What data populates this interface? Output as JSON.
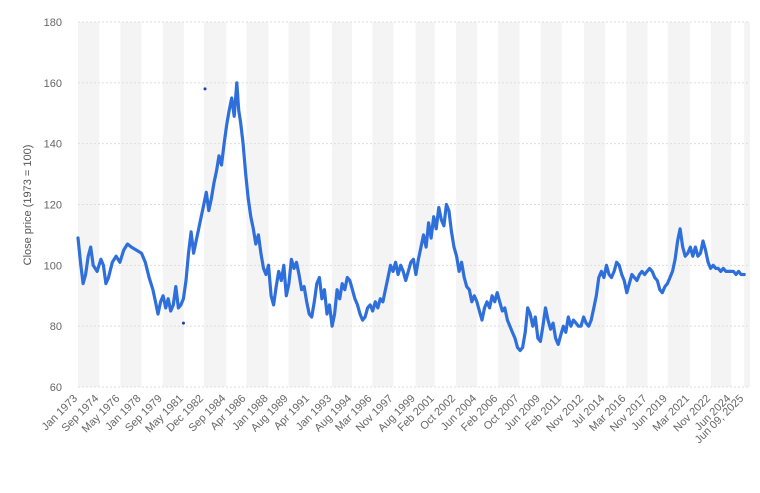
{
  "chart_data": {
    "type": "line",
    "ylabel": "Close price (1973 = 100)",
    "ylim": [
      60,
      180
    ],
    "yticks": [
      60,
      80,
      100,
      120,
      140,
      160,
      180
    ],
    "xlim": [
      1973.0,
      2025.9
    ],
    "xtick_labels": [
      {
        "label": "Jan 1973",
        "x": 1973.0
      },
      {
        "label": "Sep 1974",
        "x": 1974.67
      },
      {
        "label": "May 1976",
        "x": 1976.33
      },
      {
        "label": "Jan 1978",
        "x": 1978.0
      },
      {
        "label": "Sep 1979",
        "x": 1979.67
      },
      {
        "label": "May 1981",
        "x": 1981.33
      },
      {
        "label": "Dec 1982",
        "x": 1982.92
      },
      {
        "label": "Sep 1984",
        "x": 1984.67
      },
      {
        "label": "Apr 1986",
        "x": 1986.25
      },
      {
        "label": "Jan 1988",
        "x": 1988.0
      },
      {
        "label": "Aug 1989",
        "x": 1989.58
      },
      {
        "label": "Apr 1991",
        "x": 1991.25
      },
      {
        "label": "Jan 1993",
        "x": 1993.0
      },
      {
        "label": "Aug 1994",
        "x": 1994.58
      },
      {
        "label": "Mar 1996",
        "x": 1996.17
      },
      {
        "label": "Nov 1997",
        "x": 1997.83
      },
      {
        "label": "Aug 1999",
        "x": 1999.58
      },
      {
        "label": "Feb 2001",
        "x": 2001.08
      },
      {
        "label": "Oct 2002",
        "x": 2002.75
      },
      {
        "label": "Jun 2004",
        "x": 2004.42
      },
      {
        "label": "Feb 2006",
        "x": 2006.08
      },
      {
        "label": "Oct 2007",
        "x": 2007.75
      },
      {
        "label": "Jun 2009",
        "x": 2009.42
      },
      {
        "label": "Feb 2011",
        "x": 2011.08
      },
      {
        "label": "Nov 2012",
        "x": 2012.83
      },
      {
        "label": "Jul 2014",
        "x": 2014.5
      },
      {
        "label": "Mar 2016",
        "x": 2016.17
      },
      {
        "label": "Nov 2017",
        "x": 2017.83
      },
      {
        "label": "Jun 2019",
        "x": 2019.42
      },
      {
        "label": "Mar 2021",
        "x": 2021.17
      },
      {
        "label": "Nov 2022",
        "x": 2022.83
      },
      {
        "label": "Jun 2024",
        "x": 2024.42
      },
      {
        "label": "Jun 09, 2025",
        "x": 2025.44
      }
    ],
    "grid": true,
    "line_color": "#2f6fdc",
    "points": [
      [
        1973.0,
        109
      ],
      [
        1973.2,
        101
      ],
      [
        1973.4,
        94
      ],
      [
        1973.6,
        97
      ],
      [
        1973.8,
        103
      ],
      [
        1974.0,
        106
      ],
      [
        1974.2,
        100
      ],
      [
        1974.5,
        98
      ],
      [
        1974.8,
        102
      ],
      [
        1975.0,
        100
      ],
      [
        1975.2,
        94
      ],
      [
        1975.4,
        96
      ],
      [
        1975.7,
        101
      ],
      [
        1976.0,
        103
      ],
      [
        1976.3,
        101
      ],
      [
        1976.6,
        105
      ],
      [
        1976.9,
        107
      ],
      [
        1977.2,
        106
      ],
      [
        1977.6,
        105
      ],
      [
        1978.0,
        104
      ],
      [
        1978.3,
        101
      ],
      [
        1978.6,
        96
      ],
      [
        1978.9,
        92
      ],
      [
        1979.1,
        88
      ],
      [
        1979.3,
        84
      ],
      [
        1979.5,
        88
      ],
      [
        1979.7,
        90
      ],
      [
        1979.9,
        86
      ],
      [
        1980.1,
        89
      ],
      [
        1980.3,
        85
      ],
      [
        1980.5,
        87
      ],
      [
        1980.7,
        93
      ],
      [
        1980.9,
        86
      ],
      [
        1981.1,
        87
      ],
      [
        1981.3,
        89
      ],
      [
        1981.5,
        95
      ],
      [
        1981.7,
        104
      ],
      [
        1981.9,
        111
      ],
      [
        1982.1,
        104
      ],
      [
        1982.3,
        108
      ],
      [
        1982.5,
        112
      ],
      [
        1982.7,
        116
      ],
      [
        1982.9,
        120
      ],
      [
        1983.1,
        124
      ],
      [
        1983.3,
        118
      ],
      [
        1983.5,
        122
      ],
      [
        1983.7,
        127
      ],
      [
        1983.9,
        131
      ],
      [
        1984.1,
        136
      ],
      [
        1984.3,
        133
      ],
      [
        1984.5,
        140
      ],
      [
        1984.7,
        146
      ],
      [
        1984.9,
        151
      ],
      [
        1985.1,
        155
      ],
      [
        1985.3,
        149
      ],
      [
        1985.5,
        160
      ],
      [
        1985.65,
        151
      ],
      [
        1985.8,
        147
      ],
      [
        1986.0,
        140
      ],
      [
        1986.2,
        130
      ],
      [
        1986.4,
        122
      ],
      [
        1986.6,
        116
      ],
      [
        1986.8,
        112
      ],
      [
        1987.0,
        107
      ],
      [
        1987.2,
        110
      ],
      [
        1987.4,
        104
      ],
      [
        1987.6,
        99
      ],
      [
        1987.8,
        97
      ],
      [
        1988.0,
        100
      ],
      [
        1988.2,
        90
      ],
      [
        1988.4,
        87
      ],
      [
        1988.6,
        93
      ],
      [
        1988.8,
        98
      ],
      [
        1989.0,
        95
      ],
      [
        1989.2,
        100
      ],
      [
        1989.4,
        90
      ],
      [
        1989.6,
        94
      ],
      [
        1989.8,
        102
      ],
      [
        1990.0,
        99
      ],
      [
        1990.2,
        101
      ],
      [
        1990.4,
        97
      ],
      [
        1990.6,
        92
      ],
      [
        1990.8,
        93
      ],
      [
        1991.0,
        88
      ],
      [
        1991.2,
        84
      ],
      [
        1991.4,
        83
      ],
      [
        1991.6,
        88
      ],
      [
        1991.8,
        94
      ],
      [
        1992.0,
        96
      ],
      [
        1992.2,
        89
      ],
      [
        1992.4,
        92
      ],
      [
        1992.6,
        84
      ],
      [
        1992.8,
        87
      ],
      [
        1993.0,
        80
      ],
      [
        1993.2,
        84
      ],
      [
        1993.4,
        92
      ],
      [
        1993.6,
        89
      ],
      [
        1993.8,
        94
      ],
      [
        1994.0,
        92
      ],
      [
        1994.2,
        96
      ],
      [
        1994.4,
        95
      ],
      [
        1994.6,
        92
      ],
      [
        1994.8,
        89
      ],
      [
        1995.0,
        87
      ],
      [
        1995.2,
        84
      ],
      [
        1995.4,
        82
      ],
      [
        1995.6,
        83
      ],
      [
        1995.8,
        86
      ],
      [
        1996.0,
        87
      ],
      [
        1996.2,
        85
      ],
      [
        1996.4,
        88
      ],
      [
        1996.6,
        86
      ],
      [
        1996.8,
        89
      ],
      [
        1997.0,
        88
      ],
      [
        1997.2,
        92
      ],
      [
        1997.4,
        96
      ],
      [
        1997.6,
        100
      ],
      [
        1997.8,
        98
      ],
      [
        1998.0,
        101
      ],
      [
        1998.2,
        97
      ],
      [
        1998.4,
        100
      ],
      [
        1998.6,
        98
      ],
      [
        1998.8,
        95
      ],
      [
        1999.0,
        98
      ],
      [
        1999.2,
        101
      ],
      [
        1999.4,
        102
      ],
      [
        1999.6,
        97
      ],
      [
        1999.8,
        102
      ],
      [
        2000.0,
        106
      ],
      [
        2000.2,
        110
      ],
      [
        2000.4,
        106
      ],
      [
        2000.6,
        114
      ],
      [
        2000.8,
        109
      ],
      [
        2001.0,
        116
      ],
      [
        2001.2,
        112
      ],
      [
        2001.4,
        119
      ],
      [
        2001.6,
        115
      ],
      [
        2001.8,
        113
      ],
      [
        2002.0,
        120
      ],
      [
        2002.2,
        118
      ],
      [
        2002.4,
        111
      ],
      [
        2002.6,
        106
      ],
      [
        2002.8,
        103
      ],
      [
        2003.0,
        98
      ],
      [
        2003.2,
        101
      ],
      [
        2003.4,
        96
      ],
      [
        2003.6,
        93
      ],
      [
        2003.8,
        92
      ],
      [
        2004.0,
        88
      ],
      [
        2004.2,
        90
      ],
      [
        2004.4,
        88
      ],
      [
        2004.6,
        85
      ],
      [
        2004.8,
        82
      ],
      [
        2005.0,
        86
      ],
      [
        2005.2,
        88
      ],
      [
        2005.4,
        86
      ],
      [
        2005.6,
        90
      ],
      [
        2005.8,
        88
      ],
      [
        2006.0,
        91
      ],
      [
        2006.2,
        88
      ],
      [
        2006.4,
        85
      ],
      [
        2006.6,
        86
      ],
      [
        2006.8,
        82
      ],
      [
        2007.0,
        80
      ],
      [
        2007.2,
        78
      ],
      [
        2007.4,
        76
      ],
      [
        2007.6,
        73
      ],
      [
        2007.8,
        72
      ],
      [
        2008.0,
        73
      ],
      [
        2008.2,
        78
      ],
      [
        2008.4,
        86
      ],
      [
        2008.6,
        84
      ],
      [
        2008.8,
        80
      ],
      [
        2009.0,
        83
      ],
      [
        2009.2,
        76
      ],
      [
        2009.4,
        75
      ],
      [
        2009.6,
        80
      ],
      [
        2009.8,
        86
      ],
      [
        2010.0,
        82
      ],
      [
        2010.2,
        79
      ],
      [
        2010.4,
        81
      ],
      [
        2010.6,
        76
      ],
      [
        2010.8,
        74
      ],
      [
        2011.0,
        77
      ],
      [
        2011.2,
        80
      ],
      [
        2011.4,
        78
      ],
      [
        2011.6,
        83
      ],
      [
        2011.8,
        80
      ],
      [
        2012.0,
        82
      ],
      [
        2012.2,
        81
      ],
      [
        2012.4,
        80
      ],
      [
        2012.6,
        80
      ],
      [
        2012.8,
        83
      ],
      [
        2013.0,
        81
      ],
      [
        2013.2,
        80
      ],
      [
        2013.4,
        82
      ],
      [
        2013.6,
        86
      ],
      [
        2013.8,
        90
      ],
      [
        2014.0,
        96
      ],
      [
        2014.2,
        98
      ],
      [
        2014.4,
        96
      ],
      [
        2014.6,
        100
      ],
      [
        2014.8,
        97
      ],
      [
        2015.0,
        96
      ],
      [
        2015.2,
        98
      ],
      [
        2015.4,
        101
      ],
      [
        2015.6,
        100
      ],
      [
        2015.8,
        97
      ],
      [
        2016.0,
        95
      ],
      [
        2016.2,
        91
      ],
      [
        2016.4,
        94
      ],
      [
        2016.6,
        97
      ],
      [
        2016.8,
        96
      ],
      [
        2017.0,
        95
      ],
      [
        2017.2,
        97
      ],
      [
        2017.4,
        98
      ],
      [
        2017.6,
        97
      ],
      [
        2017.8,
        98
      ],
      [
        2018.0,
        99
      ],
      [
        2018.2,
        98
      ],
      [
        2018.4,
        96
      ],
      [
        2018.6,
        95
      ],
      [
        2018.8,
        92
      ],
      [
        2019.0,
        91
      ],
      [
        2019.2,
        93
      ],
      [
        2019.4,
        94
      ],
      [
        2019.6,
        96
      ],
      [
        2019.8,
        98
      ],
      [
        2020.0,
        102
      ],
      [
        2020.2,
        108
      ],
      [
        2020.4,
        112
      ],
      [
        2020.6,
        106
      ],
      [
        2020.8,
        103
      ],
      [
        2021.0,
        104
      ],
      [
        2021.2,
        106
      ],
      [
        2021.4,
        103
      ],
      [
        2021.6,
        106
      ],
      [
        2021.8,
        103
      ],
      [
        2022.0,
        104
      ],
      [
        2022.2,
        108
      ],
      [
        2022.4,
        105
      ],
      [
        2022.6,
        101
      ],
      [
        2022.8,
        99
      ],
      [
        2023.0,
        100
      ],
      [
        2023.2,
        99
      ],
      [
        2023.4,
        99
      ],
      [
        2023.6,
        98
      ],
      [
        2023.8,
        99
      ],
      [
        2024.0,
        98
      ],
      [
        2024.2,
        98
      ],
      [
        2024.4,
        98
      ],
      [
        2024.6,
        98
      ],
      [
        2024.8,
        97
      ],
      [
        2025.0,
        98
      ],
      [
        2025.2,
        97
      ],
      [
        2025.44,
        97
      ]
    ],
    "markers": [
      {
        "x": 1983.0,
        "y": 158
      },
      {
        "x": 1981.3,
        "y": 81
      }
    ]
  }
}
